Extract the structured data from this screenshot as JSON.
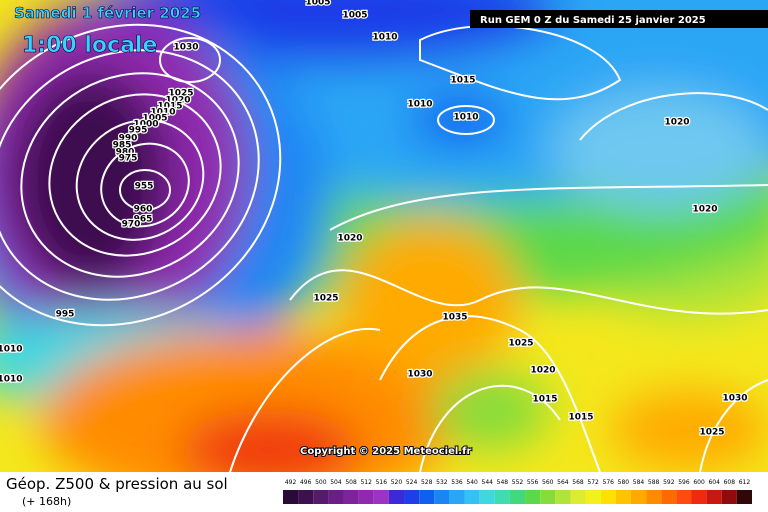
{
  "header": {
    "date": "Samedi 1 février 2025",
    "time": "1:00 locale",
    "run": "Run GEM 0 Z du Samedi 25 janvier 2025"
  },
  "copyright": "Copyright © 2025 Meteociel.fr",
  "isobar_labels": [
    "1005",
    "1005",
    "1010",
    "1030",
    "1025",
    "1020",
    "1015",
    "1010",
    "1005",
    "1000",
    "995",
    "990",
    "985",
    "980",
    "975",
    "955",
    "960",
    "965",
    "970",
    "1015",
    "1010",
    "1010",
    "1020",
    "1020",
    "1020",
    "1025",
    "995",
    "1035",
    "1025",
    "1010",
    "1010",
    "1030",
    "1020",
    "1015",
    "1015",
    "1030",
    "1025"
  ],
  "footer": {
    "title": "Géop. Z500 & pression au sol",
    "lead": "(+ 168h)"
  },
  "colorbar": {
    "labels": [
      492,
      496,
      500,
      504,
      508,
      512,
      516,
      520,
      524,
      528,
      532,
      536,
      540,
      544,
      548,
      552,
      556,
      560,
      564,
      568,
      572,
      576,
      580,
      584,
      588,
      592,
      596,
      600,
      604,
      608,
      612
    ],
    "colors": [
      "#2a0a36",
      "#3d1050",
      "#551a6b",
      "#6b1f85",
      "#7f239a",
      "#8f2aae",
      "#9b34c4",
      "#3a2bd6",
      "#1d3ee8",
      "#1060f0",
      "#1a86f4",
      "#2ba6f5",
      "#35c2f2",
      "#3fd8e0",
      "#3fdcb0",
      "#43d780",
      "#5cd84a",
      "#86dc3a",
      "#b0e438",
      "#dcec30",
      "#f4f01c",
      "#ffe000",
      "#ffc400",
      "#ffaa00",
      "#ff8c00",
      "#ff6a00",
      "#ff4a10",
      "#f02a10",
      "#c81810",
      "#8e0c0c",
      "#300808"
    ]
  }
}
